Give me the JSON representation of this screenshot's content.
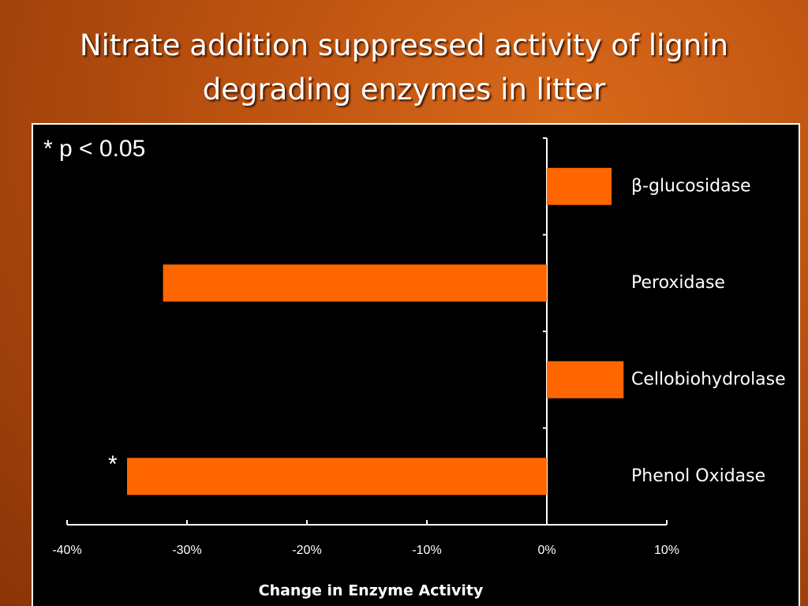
{
  "chart_data": {
    "type": "bar",
    "orientation": "horizontal",
    "title": "Nitrate addition suppressed activity of lignin degrading enzymes in litter",
    "categories": [
      "β-glucosidase",
      "Peroxidase",
      "Cellobiohydrolase",
      "Phenol Oxidase"
    ],
    "values": [
      5.4,
      -32,
      6.4,
      -35
    ],
    "color": "#ff6600",
    "xlabel": "Change in Enzyme Activity",
    "xlim": [
      -40,
      10
    ],
    "xticks": [
      {
        "value": -40,
        "label": "-40%"
      },
      {
        "value": -30,
        "label": "-30%"
      },
      {
        "value": -20,
        "label": "-20%"
      },
      {
        "value": -10,
        "label": "-10%"
      },
      {
        "value": 0,
        "label": "0%"
      },
      {
        "value": 10,
        "label": "10%"
      }
    ],
    "annotations": [
      "* p < 0.05",
      "*"
    ]
  }
}
